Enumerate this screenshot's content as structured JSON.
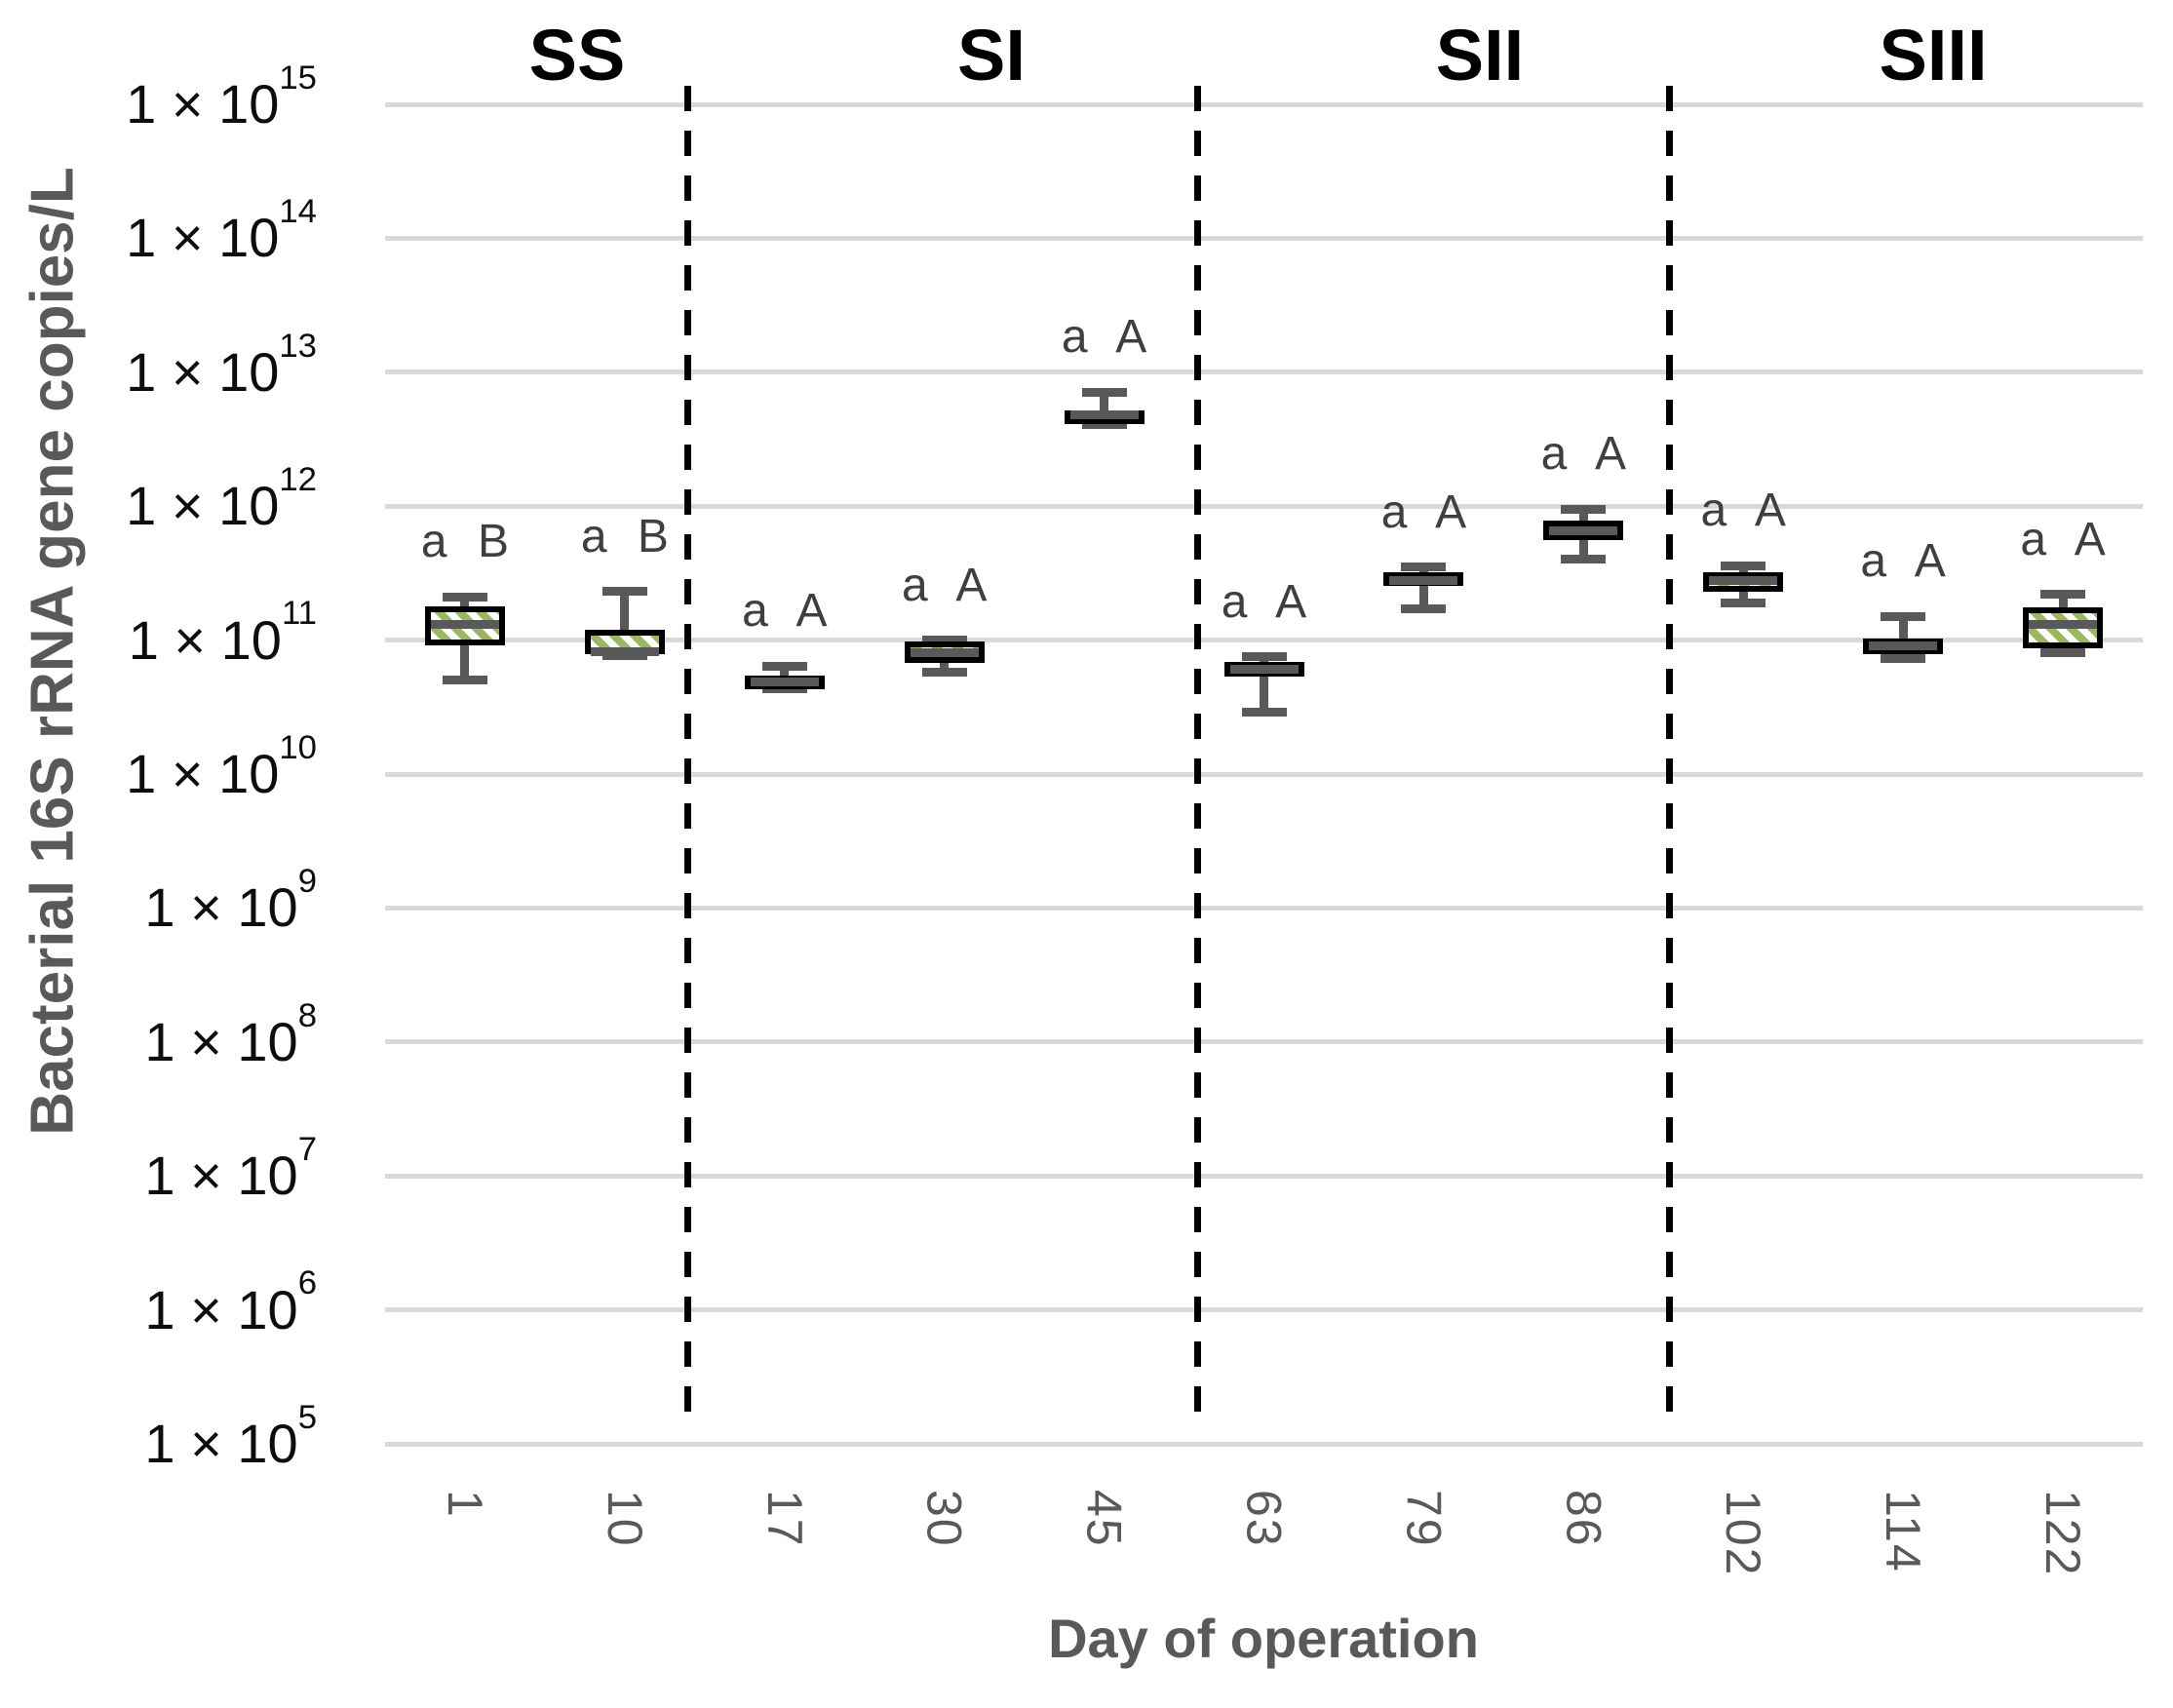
{
  "chart_data": {
    "type": "boxplot",
    "title": "",
    "ylabel": "Bacterial 16S rRNA gene copies/L",
    "xlabel": "Day of operation",
    "y_scale": "log10",
    "ylim": [
      100000.0,
      1000000000000000.0
    ],
    "grid": true,
    "legend": false,
    "x_label_rotation_deg": 90,
    "y_ticks": [
      {
        "base": "1 × 10",
        "exp": "15"
      },
      {
        "base": "1 × 10",
        "exp": "14"
      },
      {
        "base": "1 × 10",
        "exp": "13"
      },
      {
        "base": "1 × 10",
        "exp": "12"
      },
      {
        "base": "1 × 10",
        "exp": "11"
      },
      {
        "base": "1 × 10",
        "exp": "10"
      },
      {
        "base": "1 × 10",
        "exp": "9"
      },
      {
        "base": "1 × 10",
        "exp": "8"
      },
      {
        "base": "1 × 10",
        "exp": "7"
      },
      {
        "base": "1 × 10",
        "exp": "6"
      },
      {
        "base": "1 × 10",
        "exp": "5"
      }
    ],
    "categories": [
      "1",
      "10",
      "17",
      "30",
      "45",
      "63",
      "79",
      "86",
      "102",
      "114",
      "122"
    ],
    "sections": [
      {
        "label": "SS",
        "days": [
          "1",
          "10"
        ]
      },
      {
        "label": "SI",
        "days": [
          "17",
          "30",
          "45"
        ]
      },
      {
        "label": "SII",
        "days": [
          "63",
          "79",
          "86"
        ]
      },
      {
        "label": "SIII",
        "days": [
          "102",
          "114",
          "122"
        ]
      }
    ],
    "boxes": [
      {
        "day": "1",
        "section": "SS",
        "annotation": "a B",
        "whisker_low": 50000000000.0,
        "q1": 92000000000.0,
        "median": 130000000000.0,
        "q3": 180000000000.0,
        "whisker_high": 210000000000.0
      },
      {
        "day": "10",
        "section": "SS",
        "annotation": "a B",
        "whisker_low": 76000000000.0,
        "q1": 79000000000.0,
        "median": 82000000000.0,
        "q3": 120000000000.0,
        "whisker_high": 230000000000.0
      },
      {
        "day": "17",
        "section": "SI",
        "annotation": "a A",
        "whisker_low": 43000000000.0,
        "q1": 45000000000.0,
        "median": 49000000000.0,
        "q3": 54000000000.0,
        "whisker_high": 64000000000.0
      },
      {
        "day": "30",
        "section": "SI",
        "annotation": "a A",
        "whisker_low": 58000000000.0,
        "q1": 68000000000.0,
        "median": 80000000000.0,
        "q3": 97000000000.0,
        "whisker_high": 100000000000.0
      },
      {
        "day": "45",
        "section": "SI",
        "annotation": "a A",
        "whisker_low": 4100000000000.0,
        "q1": 4400000000000.0,
        "median": 4800000000000.0,
        "q3": 5200000000000.0,
        "whisker_high": 7100000000000.0
      },
      {
        "day": "63",
        "section": "SII",
        "annotation": "a A",
        "whisker_low": 29000000000.0,
        "q1": 53000000000.0,
        "median": 61000000000.0,
        "q3": 69000000000.0,
        "whisker_high": 75000000000.0
      },
      {
        "day": "79",
        "section": "SII",
        "annotation": "a A",
        "whisker_low": 170000000000.0,
        "q1": 260000000000.0,
        "median": 280000000000.0,
        "q3": 320000000000.0,
        "whisker_high": 350000000000.0
      },
      {
        "day": "86",
        "section": "SII",
        "annotation": "a A",
        "whisker_low": 400000000000.0,
        "q1": 560000000000.0,
        "median": 650000000000.0,
        "q3": 780000000000.0,
        "whisker_high": 950000000000.0
      },
      {
        "day": "102",
        "section": "SIII",
        "annotation": "a A",
        "whisker_low": 190000000000.0,
        "q1": 230000000000.0,
        "median": 280000000000.0,
        "q3": 320000000000.0,
        "whisker_high": 360000000000.0
      },
      {
        "day": "114",
        "section": "SIII",
        "annotation": "a A",
        "whisker_low": 73000000000.0,
        "q1": 78000000000.0,
        "median": 91000000000.0,
        "q3": 103000000000.0,
        "whisker_high": 150000000000.0
      },
      {
        "day": "122",
        "section": "SIII",
        "annotation": "a A",
        "whisker_low": 80000000000.0,
        "q1": 87000000000.0,
        "median": 130000000000.0,
        "q3": 176000000000.0,
        "whisker_high": 220000000000.0
      }
    ],
    "colors": {
      "box_fill_bg": "#FFFFFF",
      "box_fill_stripe": "#9CB85C",
      "box_border": "#000000",
      "whisker": "#595959",
      "median": "#595959",
      "gridline": "#D9D9D9",
      "divider": "#000000",
      "axis_text": "#0D0D0D",
      "muted_text": "#595959",
      "annotation_text": "#3F3F3F"
    }
  }
}
